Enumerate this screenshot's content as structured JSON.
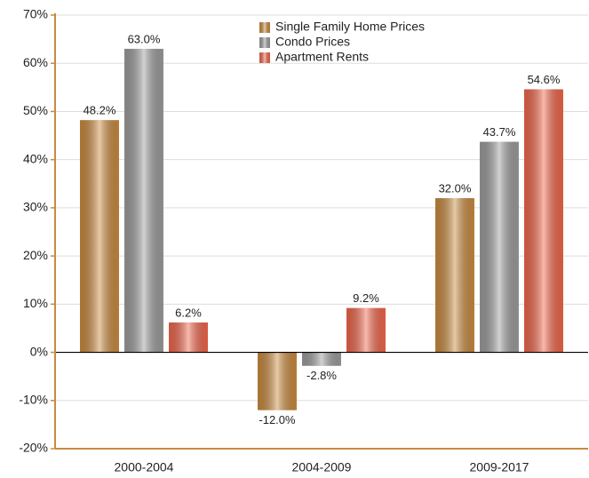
{
  "chart_data": {
    "type": "bar",
    "categories": [
      "2000-2004",
      "2004-2009",
      "2009-2017"
    ],
    "series": [
      {
        "name": "Single Family Home Prices",
        "color": "#c98a3e",
        "values": [
          48.2,
          -12.0,
          32.0
        ],
        "value_labels": [
          "48.2%",
          "-12.0%",
          "32.0%"
        ]
      },
      {
        "name": "Condo Prices",
        "color": "#9c9c9c",
        "values": [
          63.0,
          -2.8,
          43.7
        ],
        "value_labels": [
          "63.0%",
          "-2.8%",
          "43.7%"
        ]
      },
      {
        "name": "Apartment Rents",
        "color": "#f0654a",
        "values": [
          6.2,
          9.2,
          54.6
        ],
        "value_labels": [
          "6.2%",
          "9.2%",
          "54.6%"
        ]
      }
    ],
    "ylim": [
      -20,
      70
    ],
    "yticks": [
      {
        "value": -20,
        "label": "-20%"
      },
      {
        "value": -10,
        "label": "-10%"
      },
      {
        "value": 0,
        "label": "0%"
      },
      {
        "value": 10,
        "label": "10%"
      },
      {
        "value": 20,
        "label": "20%"
      },
      {
        "value": 30,
        "label": "30%"
      },
      {
        "value": 40,
        "label": "40%"
      },
      {
        "value": 50,
        "label": "50%"
      },
      {
        "value": 60,
        "label": "60%"
      },
      {
        "value": 70,
        "label": "70%"
      }
    ],
    "grid": true,
    "legend_position": "top"
  }
}
